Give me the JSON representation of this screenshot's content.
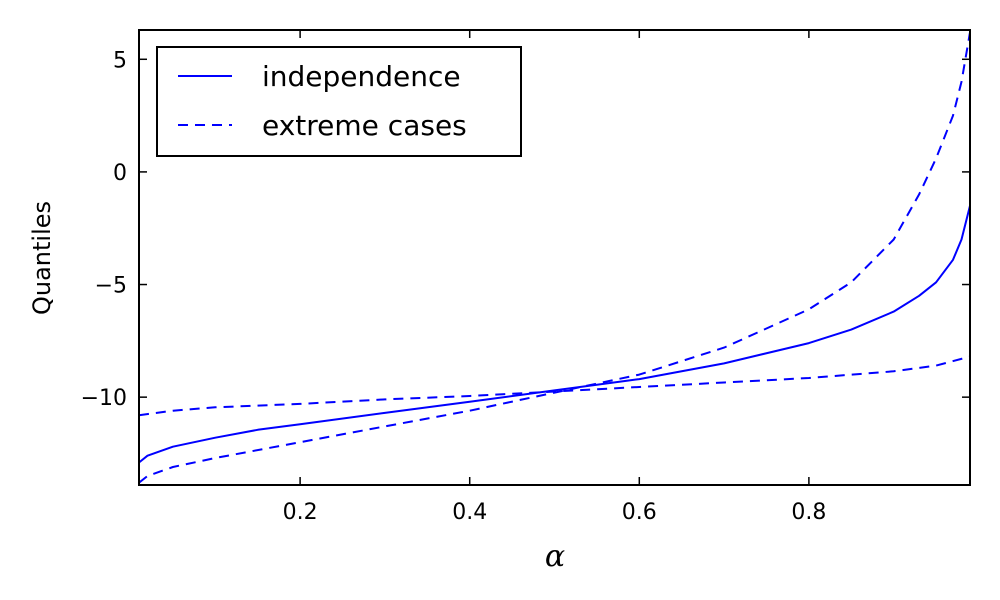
{
  "chart_data": {
    "type": "line",
    "title": "",
    "xlabel": "α",
    "ylabel": "Quantiles",
    "xlim": [
      0.01,
      0.99
    ],
    "ylim": [
      -13.9,
      6.3
    ],
    "xticks": [
      0.2,
      0.4,
      0.6,
      0.8
    ],
    "xtick_labels": [
      "0.2",
      "0.4",
      "0.6",
      "0.8"
    ],
    "yticks": [
      5,
      0,
      -5,
      -10
    ],
    "ytick_labels": [
      "5",
      "0",
      "−5",
      "−10"
    ],
    "grid": false,
    "legend": {
      "placement": "top-left",
      "entries": [
        {
          "label": "independence",
          "style": "solid"
        },
        {
          "label": "extreme cases",
          "style": "dashed"
        }
      ]
    },
    "color": "#0000ff",
    "series": [
      {
        "name": "independence",
        "style": "solid",
        "x": [
          0.01,
          0.02,
          0.05,
          0.1,
          0.15,
          0.2,
          0.3,
          0.4,
          0.5,
          0.6,
          0.7,
          0.8,
          0.85,
          0.9,
          0.93,
          0.95,
          0.97,
          0.98,
          0.99
        ],
        "y": [
          -12.9,
          -12.6,
          -12.2,
          -11.8,
          -11.45,
          -11.2,
          -10.7,
          -10.2,
          -9.7,
          -9.2,
          -8.5,
          -7.6,
          -7.0,
          -6.2,
          -5.5,
          -4.9,
          -3.9,
          -3.0,
          -1.5
        ]
      },
      {
        "name": "extreme cases",
        "style": "dashed",
        "x": [
          0.01,
          0.02,
          0.05,
          0.1,
          0.2,
          0.3,
          0.4,
          0.5,
          0.6,
          0.7,
          0.8,
          0.85,
          0.9,
          0.93,
          0.95,
          0.97,
          0.98,
          0.99
        ],
        "y": [
          -13.8,
          -13.5,
          -13.1,
          -12.7,
          -12.0,
          -11.3,
          -10.6,
          -9.8,
          -9.0,
          -7.8,
          -6.1,
          -4.9,
          -3.0,
          -1.0,
          0.6,
          2.5,
          4.0,
          6.2
        ]
      },
      {
        "name": "extreme cases",
        "style": "dashed",
        "x": [
          0.01,
          0.05,
          0.1,
          0.2,
          0.3,
          0.4,
          0.5,
          0.6,
          0.7,
          0.8,
          0.9,
          0.95,
          0.99
        ],
        "y": [
          -10.8,
          -10.6,
          -10.45,
          -10.3,
          -10.1,
          -9.95,
          -9.75,
          -9.55,
          -9.35,
          -9.15,
          -8.85,
          -8.6,
          -8.2
        ]
      }
    ]
  }
}
